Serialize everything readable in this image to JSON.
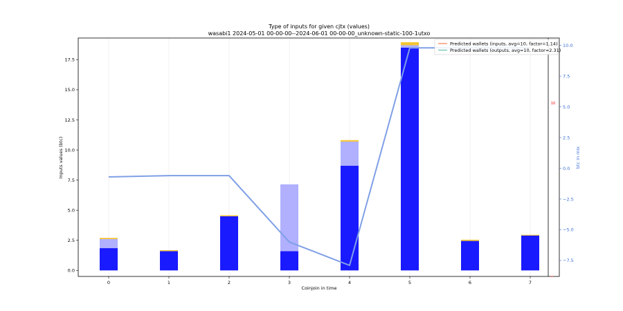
{
  "chart_data": {
    "type": "bar",
    "title": "Type of inputs for given cjtx (values)",
    "subtitle": "wasabi1 2024-05-01 00-00-00--2024-06-01 00-00-00_unknown-static-100-1utxo",
    "xlabel": "Coinjoin in time",
    "ylabel": "Inputs values (btc)",
    "y2label": "btc in mix",
    "categories": [
      "0",
      "1",
      "2",
      "3",
      "4",
      "5",
      "6",
      "7"
    ],
    "ylim": [
      -0.5,
      19.3
    ],
    "y2lim": [
      -8.8,
      10.6
    ],
    "yticks": [
      "0.0",
      "2.5",
      "5.0",
      "7.5",
      "10.0",
      "12.5",
      "15.0",
      "17.5"
    ],
    "y2ticks": [
      "−7.5",
      "−5.0",
      "−2.5",
      "0.0",
      "2.5",
      "5.0",
      "7.5",
      "10.0"
    ],
    "grid": "vertical",
    "legend_position": "top-right",
    "series": [
      {
        "color": "#1a1aff",
        "values": [
          1.85,
          1.6,
          4.5,
          1.6,
          8.7,
          18.5,
          2.45,
          2.9
        ]
      },
      {
        "color": "#b0b0ff",
        "values": [
          0.75,
          0.0,
          0.0,
          5.55,
          2.0,
          0.2,
          0.0,
          0.0
        ]
      },
      {
        "color": "#f4c430",
        "values": [
          0.1,
          0.08,
          0.08,
          0.0,
          0.12,
          0.25,
          0.1,
          0.06
        ]
      }
    ],
    "line_series": {
      "axis": "right",
      "color": "#7f9fe6",
      "x": [
        0,
        1,
        2,
        3,
        4,
        5,
        6,
        7
      ],
      "values": [
        -0.7,
        -0.6,
        -0.6,
        -6.0,
        -7.9,
        9.8,
        9.8,
        9.8
      ]
    },
    "legend": [
      {
        "label": "Predicted wallets (inputs, avg=10, factor=1.14)",
        "color": "#ff7f50"
      },
      {
        "label": "Predicted wallets (outputs, avg=10, factor=2.31)",
        "color": "#66c2a5"
      }
    ],
    "annotation": {
      "text": "10",
      "color": "#ff0000"
    }
  }
}
